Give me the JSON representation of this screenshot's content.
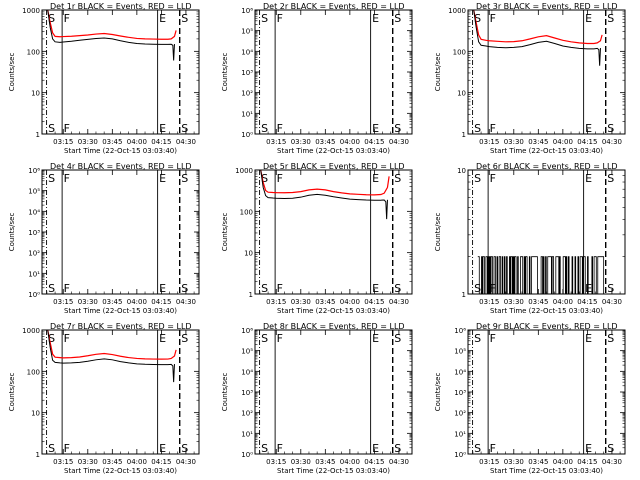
{
  "figure": {
    "x_ticks": [
      "03:15",
      "03:30",
      "03:45",
      "04:00",
      "04:15",
      "04:30"
    ],
    "x_tick_values": [
      0.0,
      15.0,
      30.0,
      45.0,
      60.0,
      75.0
    ],
    "xlabel": "Start Time (22-Oct-15 03:03:40)",
    "ylabel": "Counts/sec",
    "colors": {
      "events": "#000000",
      "lld": "#ff0000"
    },
    "markers": [
      {
        "label": "S",
        "x": -10.2,
        "style": "dashdot"
      },
      {
        "label": "F",
        "x": -0.7,
        "style": "solid"
      },
      {
        "label": "E",
        "x": 57.7,
        "style": "solid"
      },
      {
        "label": "S",
        "x": 71.2,
        "style": "dashed"
      }
    ]
  },
  "chart_data": [
    {
      "title": "Det 1r BLACK = Events, RED = LLD",
      "type": "line",
      "y_scale": "log",
      "ylim": [
        1,
        1000
      ],
      "y_ticks": [
        "1",
        "10",
        "100",
        "1000"
      ],
      "y_tick_values": [
        1,
        10,
        100,
        1000
      ],
      "series": [
        {
          "color": "#ff0000",
          "x": [
            -9.5,
            -8.0,
            -6.5,
            -5.0,
            -2.0,
            0.0,
            5.0,
            10.0,
            15.0,
            20.0,
            25.0,
            30.0,
            35.0,
            40.0,
            45.0,
            50.0,
            55.0,
            60.0,
            64.0,
            66.0,
            68.0,
            69.0
          ],
          "values": [
            1000,
            500,
            280,
            230,
            225,
            228,
            232,
            240,
            248,
            262,
            270,
            255,
            235,
            218,
            205,
            200,
            198,
            196,
            196,
            200,
            230,
            320
          ]
        },
        {
          "color": "#000000",
          "x": [
            -9.5,
            -8.0,
            -6.5,
            -5.0,
            -2.0,
            0.0,
            5.0,
            10.0,
            15.0,
            20.0,
            25.0,
            30.0,
            35.0,
            40.0,
            45.0,
            50.0,
            55.0,
            60.0,
            64.0,
            66.0,
            67.0,
            67.5,
            68.0
          ],
          "values": [
            1000,
            380,
            200,
            170,
            165,
            168,
            175,
            185,
            195,
            205,
            210,
            200,
            180,
            165,
            155,
            150,
            148,
            147,
            147,
            148,
            140,
            60,
            150
          ]
        }
      ]
    },
    {
      "title": "Det 2r BLACK = Events, RED = LLD",
      "type": "line",
      "y_scale": "log",
      "ylim": [
        1,
        1000000
      ],
      "y_ticks": [
        "10⁰",
        "10¹",
        "10²",
        "10³",
        "10⁴",
        "10⁵",
        "10⁶"
      ],
      "y_tick_values": [
        1,
        10,
        100,
        1000,
        10000,
        100000,
        1000000
      ],
      "series": []
    },
    {
      "title": "Det 3r BLACK = Events, RED = LLD",
      "type": "line",
      "y_scale": "log",
      "ylim": [
        1,
        1000
      ],
      "y_ticks": [
        "1",
        "10",
        "100",
        "1000"
      ],
      "y_tick_values": [
        1,
        10,
        100,
        1000
      ],
      "series": [
        {
          "color": "#ff0000",
          "x": [
            -9.5,
            -8.0,
            -6.5,
            -5.0,
            -2.0,
            0.0,
            5.0,
            10.0,
            15.0,
            20.0,
            25.0,
            30.0,
            35.0,
            40.0,
            45.0,
            50.0,
            55.0,
            60.0,
            64.0,
            66.0,
            68.0,
            69.0
          ],
          "values": [
            1000,
            500,
            250,
            195,
            185,
            180,
            175,
            170,
            172,
            180,
            200,
            225,
            240,
            210,
            185,
            170,
            160,
            155,
            155,
            160,
            180,
            250
          ]
        },
        {
          "color": "#000000",
          "x": [
            -9.5,
            -8.0,
            -6.5,
            -5.0,
            -2.0,
            0.0,
            5.0,
            10.0,
            15.0,
            20.0,
            25.0,
            30.0,
            35.0,
            40.0,
            45.0,
            50.0,
            55.0,
            60.0,
            64.0,
            66.0,
            67.0,
            67.5,
            68.0
          ],
          "values": [
            1000,
            380,
            170,
            140,
            135,
            130,
            125,
            122,
            125,
            130,
            145,
            165,
            175,
            155,
            135,
            125,
            118,
            115,
            115,
            118,
            110,
            45,
            120
          ]
        }
      ]
    },
    {
      "title": "Det 4r BLACK = Events, RED = LLD",
      "type": "line",
      "y_scale": "log",
      "ylim": [
        1,
        1000000
      ],
      "y_ticks": [
        "10⁰",
        "10¹",
        "10²",
        "10³",
        "10⁴",
        "10⁵",
        "10⁶"
      ],
      "y_tick_values": [
        1,
        10,
        100,
        1000,
        10000,
        100000,
        1000000
      ],
      "series": []
    },
    {
      "title": "Det 5r BLACK = Events, RED = LLD",
      "type": "line",
      "y_scale": "log",
      "ylim": [
        1,
        1000
      ],
      "y_ticks": [
        "1",
        "10",
        "100",
        "1000"
      ],
      "y_tick_values": [
        1,
        10,
        100,
        1000
      ],
      "series": [
        {
          "color": "#ff0000",
          "x": [
            -9.5,
            -8.0,
            -6.5,
            -5.0,
            -2.0,
            0.0,
            5.0,
            10.0,
            15.0,
            20.0,
            25.0,
            30.0,
            35.0,
            40.0,
            45.0,
            50.0,
            55.0,
            60.0,
            64.0,
            66.0,
            68.0,
            69.0
          ],
          "values": [
            1000,
            500,
            320,
            290,
            285,
            283,
            282,
            285,
            300,
            330,
            345,
            330,
            300,
            280,
            265,
            258,
            252,
            250,
            255,
            275,
            380,
            700
          ]
        },
        {
          "color": "#000000",
          "x": [
            -9.5,
            -8.0,
            -6.5,
            -5.0,
            -2.0,
            0.0,
            5.0,
            10.0,
            15.0,
            20.0,
            25.0,
            30.0,
            35.0,
            40.0,
            45.0,
            50.0,
            55.0,
            60.0,
            64.0,
            66.0,
            67.0,
            67.5,
            68.0
          ],
          "values": [
            1000,
            380,
            240,
            215,
            210,
            208,
            205,
            208,
            220,
            245,
            258,
            245,
            225,
            210,
            198,
            192,
            188,
            186,
            186,
            188,
            170,
            65,
            190
          ]
        }
      ]
    },
    {
      "title": "Det 6r BLACK = Events, RED = LLD",
      "type": "line",
      "y_scale": "log",
      "ylim": [
        1,
        10
      ],
      "y_ticks": [
        "1",
        "10"
      ],
      "y_tick_values": [
        1,
        10
      ],
      "series": [
        {
          "color": "#000000",
          "x": [
            -7.0,
            70.0
          ],
          "values": [
            1,
            2
          ],
          "note": ""
        }
      ]
    },
    {
      "title": "Det 7r BLACK = Events, RED = LLD",
      "type": "line",
      "y_scale": "log",
      "ylim": [
        1,
        1000
      ],
      "y_ticks": [
        "1",
        "10",
        "100",
        "1000"
      ],
      "y_tick_values": [
        1,
        10,
        100,
        1000
      ],
      "series": [
        {
          "color": "#ff0000",
          "x": [
            -9.5,
            -8.0,
            -6.5,
            -5.0,
            -2.0,
            0.0,
            5.0,
            10.0,
            15.0,
            20.0,
            25.0,
            30.0,
            35.0,
            40.0,
            45.0,
            50.0,
            55.0,
            60.0,
            64.0,
            66.0,
            68.0,
            69.0
          ],
          "values": [
            1000,
            500,
            260,
            220,
            215,
            212,
            215,
            222,
            238,
            258,
            270,
            255,
            232,
            215,
            205,
            200,
            198,
            197,
            198,
            205,
            235,
            330
          ]
        },
        {
          "color": "#000000",
          "x": [
            -9.5,
            -8.0,
            -6.5,
            -5.0,
            -2.0,
            0.0,
            5.0,
            10.0,
            15.0,
            20.0,
            25.0,
            30.0,
            35.0,
            40.0,
            45.0,
            50.0,
            55.0,
            60.0,
            64.0,
            66.0,
            67.0,
            67.5,
            68.0
          ],
          "values": [
            1000,
            380,
            185,
            165,
            160,
            158,
            160,
            165,
            175,
            190,
            200,
            190,
            172,
            160,
            152,
            148,
            146,
            145,
            145,
            147,
            135,
            55,
            150
          ]
        }
      ]
    },
    {
      "title": "Det 8r BLACK = Events, RED = LLD",
      "type": "line",
      "y_scale": "log",
      "ylim": [
        1,
        1000000
      ],
      "y_ticks": [
        "10⁰",
        "10¹",
        "10²",
        "10³",
        "10⁴",
        "10⁵",
        "10⁶"
      ],
      "y_tick_values": [
        1,
        10,
        100,
        1000,
        10000,
        100000,
        1000000
      ],
      "series": []
    },
    {
      "title": "Det 9r BLACK = Events, RED = LLD",
      "type": "line",
      "y_scale": "log",
      "ylim": [
        1,
        1000000
      ],
      "y_ticks": [
        "10⁰",
        "10¹",
        "10²",
        "10³",
        "10⁴",
        "10⁵",
        "10⁶"
      ],
      "y_tick_values": [
        1,
        10,
        100,
        1000,
        10000,
        100000,
        1000000
      ],
      "series": []
    }
  ]
}
